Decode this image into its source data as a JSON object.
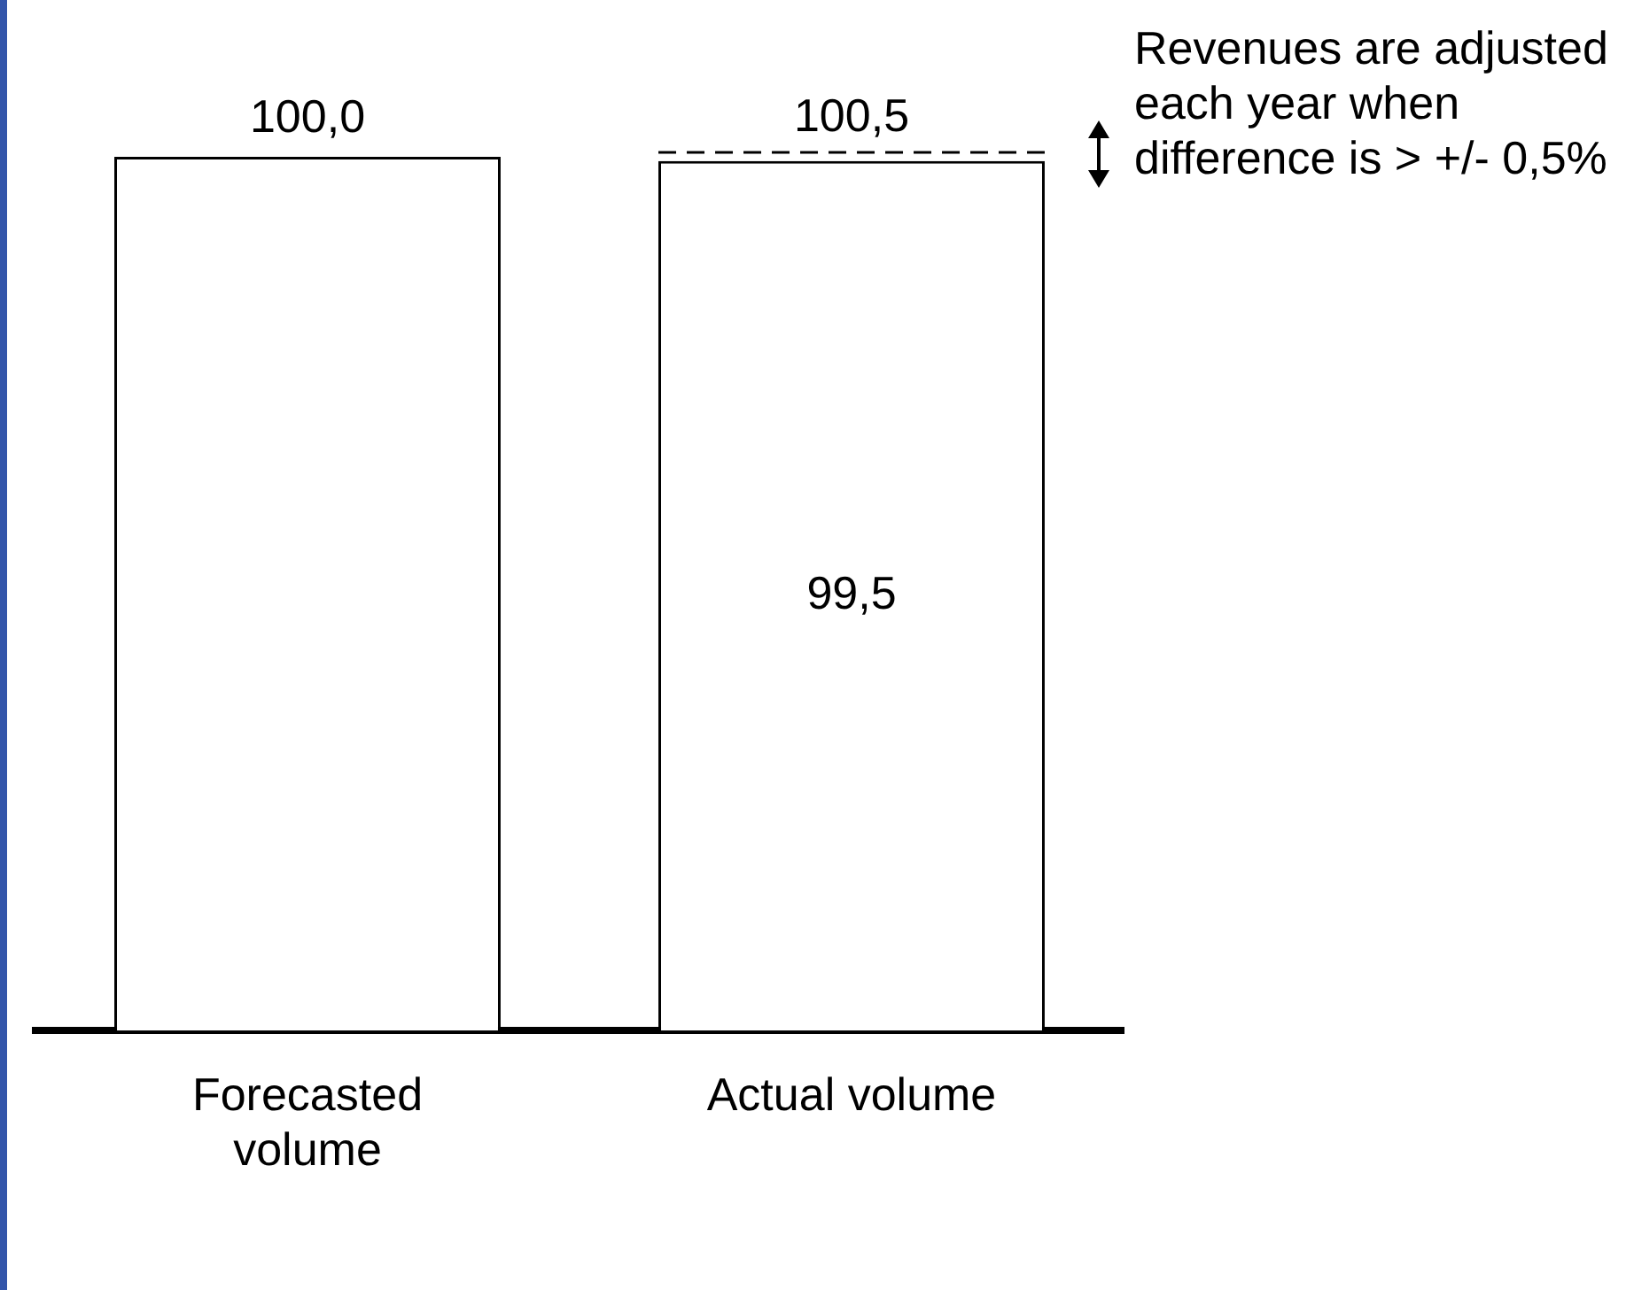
{
  "chart_data": {
    "type": "bar",
    "categories": [
      "Forecasted volume",
      "Actual volume"
    ],
    "values": [
      100.0,
      99.5
    ],
    "color": "#ffffff",
    "value_labels": [
      "100,0",
      "99,5"
    ],
    "ref_lines": [
      {
        "axis": "y",
        "value": 100.5,
        "label": "100,5",
        "line_style": "dashed"
      }
    ],
    "annotations": [
      "Revenues are adjusted each year when difference is > +/- 0,5%"
    ],
    "grid": false,
    "legend": false
  }
}
